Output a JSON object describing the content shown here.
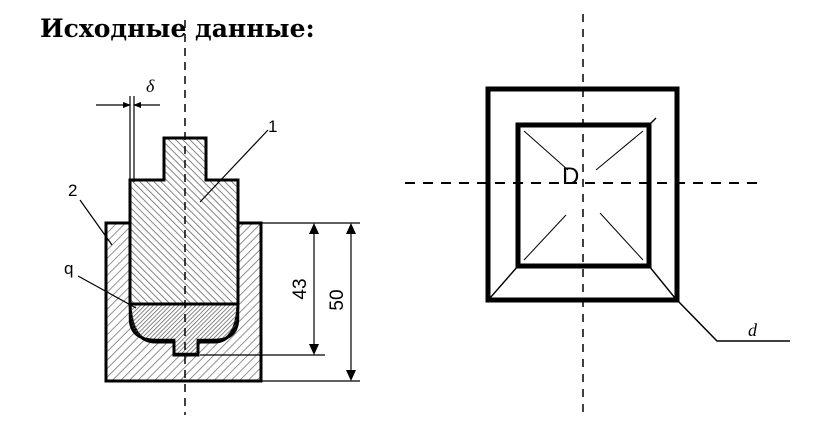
{
  "heading": "Исходные данные:",
  "left_figure": {
    "label_delta": "δ",
    "label_part1": "1",
    "label_part2": "2",
    "label_q": "q",
    "dim_inner": "43",
    "dim_outer": "50"
  },
  "right_figure": {
    "label_D": "D",
    "label_d": "d"
  },
  "colors": {
    "line": "#000000",
    "hatch": "#555555",
    "background": "#ffffff"
  }
}
